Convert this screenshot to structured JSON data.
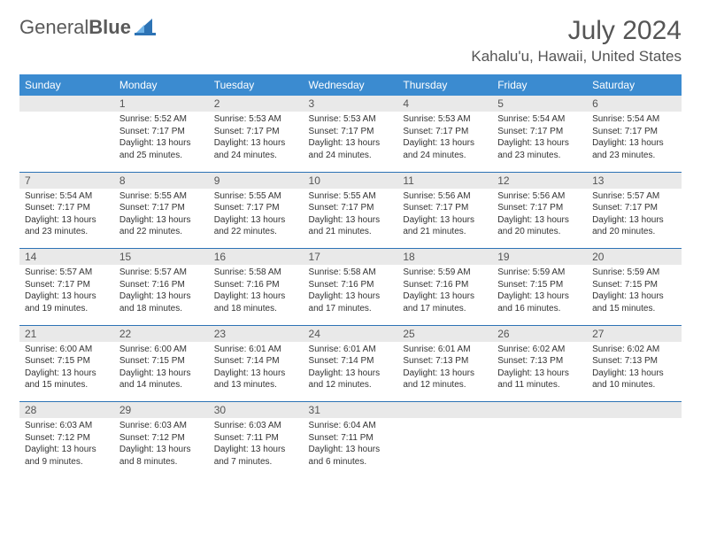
{
  "brand": {
    "part1": "General",
    "part2": "Blue"
  },
  "title": "July 2024",
  "location": "Kahalu'u, Hawaii, United States",
  "colors": {
    "header_bg": "#3b8bd0",
    "header_text": "#ffffff",
    "daynum_bg": "#e9e9e9",
    "week_sep": "#2d73b5",
    "body_text": "#333333",
    "title_text": "#555555"
  },
  "daysOfWeek": [
    "Sunday",
    "Monday",
    "Tuesday",
    "Wednesday",
    "Thursday",
    "Friday",
    "Saturday"
  ],
  "weeks": [
    {
      "nums": [
        "",
        "1",
        "2",
        "3",
        "4",
        "5",
        "6"
      ],
      "cells": [
        null,
        {
          "sunrise": "5:52 AM",
          "sunset": "7:17 PM",
          "daylight": "13 hours and 25 minutes."
        },
        {
          "sunrise": "5:53 AM",
          "sunset": "7:17 PM",
          "daylight": "13 hours and 24 minutes."
        },
        {
          "sunrise": "5:53 AM",
          "sunset": "7:17 PM",
          "daylight": "13 hours and 24 minutes."
        },
        {
          "sunrise": "5:53 AM",
          "sunset": "7:17 PM",
          "daylight": "13 hours and 24 minutes."
        },
        {
          "sunrise": "5:54 AM",
          "sunset": "7:17 PM",
          "daylight": "13 hours and 23 minutes."
        },
        {
          "sunrise": "5:54 AM",
          "sunset": "7:17 PM",
          "daylight": "13 hours and 23 minutes."
        }
      ]
    },
    {
      "nums": [
        "7",
        "8",
        "9",
        "10",
        "11",
        "12",
        "13"
      ],
      "cells": [
        {
          "sunrise": "5:54 AM",
          "sunset": "7:17 PM",
          "daylight": "13 hours and 23 minutes."
        },
        {
          "sunrise": "5:55 AM",
          "sunset": "7:17 PM",
          "daylight": "13 hours and 22 minutes."
        },
        {
          "sunrise": "5:55 AM",
          "sunset": "7:17 PM",
          "daylight": "13 hours and 22 minutes."
        },
        {
          "sunrise": "5:55 AM",
          "sunset": "7:17 PM",
          "daylight": "13 hours and 21 minutes."
        },
        {
          "sunrise": "5:56 AM",
          "sunset": "7:17 PM",
          "daylight": "13 hours and 21 minutes."
        },
        {
          "sunrise": "5:56 AM",
          "sunset": "7:17 PM",
          "daylight": "13 hours and 20 minutes."
        },
        {
          "sunrise": "5:57 AM",
          "sunset": "7:17 PM",
          "daylight": "13 hours and 20 minutes."
        }
      ]
    },
    {
      "nums": [
        "14",
        "15",
        "16",
        "17",
        "18",
        "19",
        "20"
      ],
      "cells": [
        {
          "sunrise": "5:57 AM",
          "sunset": "7:17 PM",
          "daylight": "13 hours and 19 minutes."
        },
        {
          "sunrise": "5:57 AM",
          "sunset": "7:16 PM",
          "daylight": "13 hours and 18 minutes."
        },
        {
          "sunrise": "5:58 AM",
          "sunset": "7:16 PM",
          "daylight": "13 hours and 18 minutes."
        },
        {
          "sunrise": "5:58 AM",
          "sunset": "7:16 PM",
          "daylight": "13 hours and 17 minutes."
        },
        {
          "sunrise": "5:59 AM",
          "sunset": "7:16 PM",
          "daylight": "13 hours and 17 minutes."
        },
        {
          "sunrise": "5:59 AM",
          "sunset": "7:15 PM",
          "daylight": "13 hours and 16 minutes."
        },
        {
          "sunrise": "5:59 AM",
          "sunset": "7:15 PM",
          "daylight": "13 hours and 15 minutes."
        }
      ]
    },
    {
      "nums": [
        "21",
        "22",
        "23",
        "24",
        "25",
        "26",
        "27"
      ],
      "cells": [
        {
          "sunrise": "6:00 AM",
          "sunset": "7:15 PM",
          "daylight": "13 hours and 15 minutes."
        },
        {
          "sunrise": "6:00 AM",
          "sunset": "7:15 PM",
          "daylight": "13 hours and 14 minutes."
        },
        {
          "sunrise": "6:01 AM",
          "sunset": "7:14 PM",
          "daylight": "13 hours and 13 minutes."
        },
        {
          "sunrise": "6:01 AM",
          "sunset": "7:14 PM",
          "daylight": "13 hours and 12 minutes."
        },
        {
          "sunrise": "6:01 AM",
          "sunset": "7:13 PM",
          "daylight": "13 hours and 12 minutes."
        },
        {
          "sunrise": "6:02 AM",
          "sunset": "7:13 PM",
          "daylight": "13 hours and 11 minutes."
        },
        {
          "sunrise": "6:02 AM",
          "sunset": "7:13 PM",
          "daylight": "13 hours and 10 minutes."
        }
      ]
    },
    {
      "nums": [
        "28",
        "29",
        "30",
        "31",
        "",
        "",
        ""
      ],
      "cells": [
        {
          "sunrise": "6:03 AM",
          "sunset": "7:12 PM",
          "daylight": "13 hours and 9 minutes."
        },
        {
          "sunrise": "6:03 AM",
          "sunset": "7:12 PM",
          "daylight": "13 hours and 8 minutes."
        },
        {
          "sunrise": "6:03 AM",
          "sunset": "7:11 PM",
          "daylight": "13 hours and 7 minutes."
        },
        {
          "sunrise": "6:04 AM",
          "sunset": "7:11 PM",
          "daylight": "13 hours and 6 minutes."
        },
        null,
        null,
        null
      ]
    }
  ],
  "labels": {
    "sunrise": "Sunrise:",
    "sunset": "Sunset:",
    "daylight": "Daylight:"
  }
}
